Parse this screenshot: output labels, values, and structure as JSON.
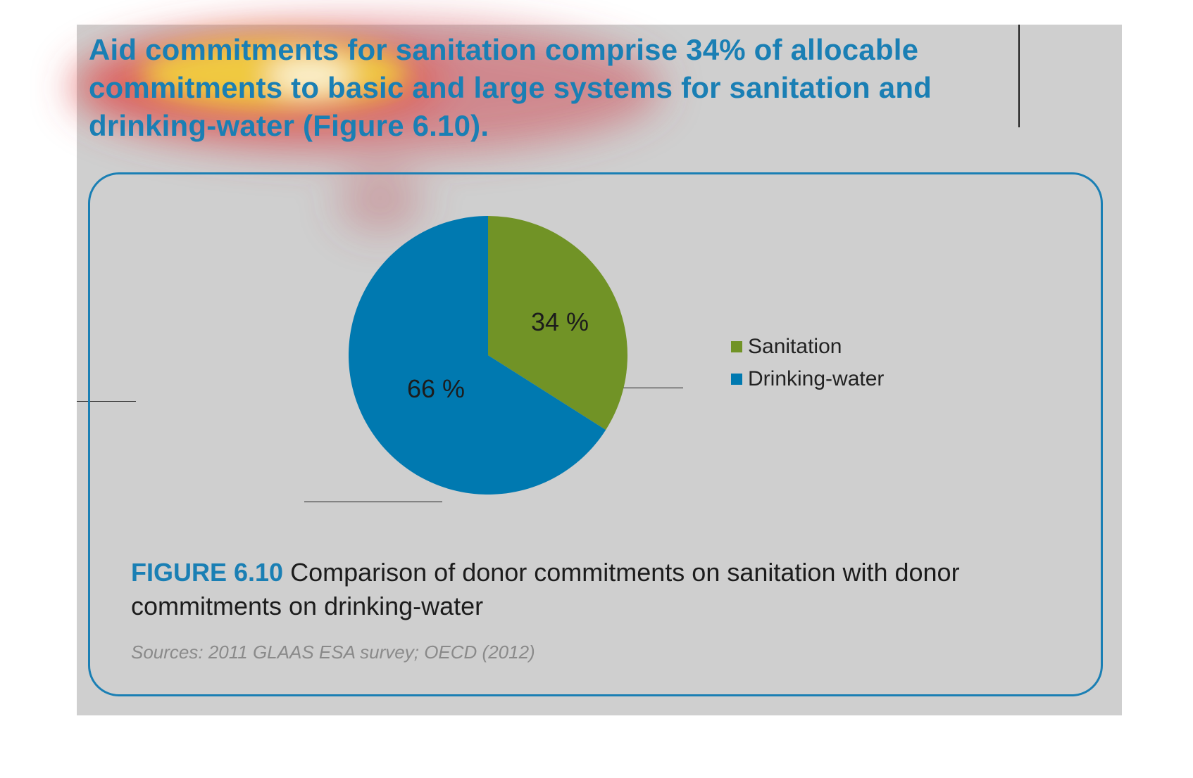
{
  "headline": "Aid commitments for sanitation comprise 34% of allocable commitments to basic and large systems for sanitation and drinking-water (Figure 6.10).",
  "colors": {
    "accent": "#1a7fb4",
    "sanitation": "#719326",
    "drinking_water": "#0079b0",
    "panel_background": "#cfcfcf"
  },
  "chart_data": {
    "type": "pie",
    "title": "",
    "slices": [
      {
        "label": "Sanitation",
        "value": 34,
        "display": "34 %",
        "color": "#719326"
      },
      {
        "label": "Drinking-water",
        "value": 66,
        "display": "66 %",
        "color": "#0079b0"
      }
    ],
    "legend_position": "right",
    "start_angle": "top, clockwise"
  },
  "legend": {
    "items": [
      {
        "label": "Sanitation",
        "color": "#719326"
      },
      {
        "label": "Drinking-water",
        "color": "#0079b0"
      }
    ]
  },
  "caption": {
    "figure_number": "FIGURE 6.10",
    "text": "Comparison of donor commitments on sanitation with donor commitments on drinking-water"
  },
  "sources": "Sources: 2011 GLAAS ESA survey; OECD (2012)"
}
